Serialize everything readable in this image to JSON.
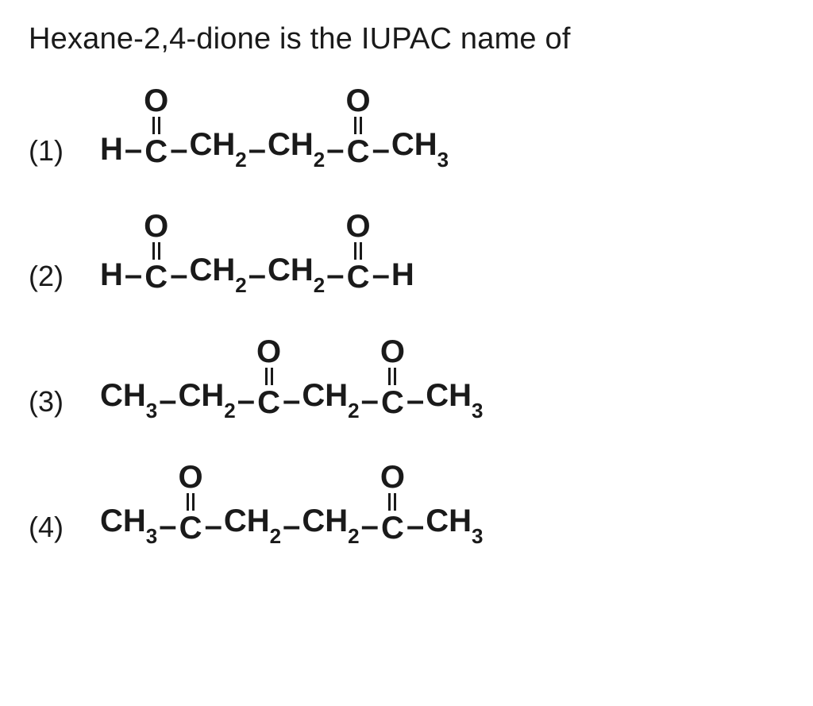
{
  "question": "Hexane-2,4-dione is the IUPAC name of",
  "labels": {
    "o1": "(1)",
    "o2": "(2)",
    "o3": "(3)",
    "o4": "(4)"
  },
  "txt": {
    "H": "H",
    "C": "C",
    "O": "O",
    "CH2": "CH",
    "CH3": "CH",
    "sub2": "2",
    "sub3": "3",
    "dash": "–"
  }
}
